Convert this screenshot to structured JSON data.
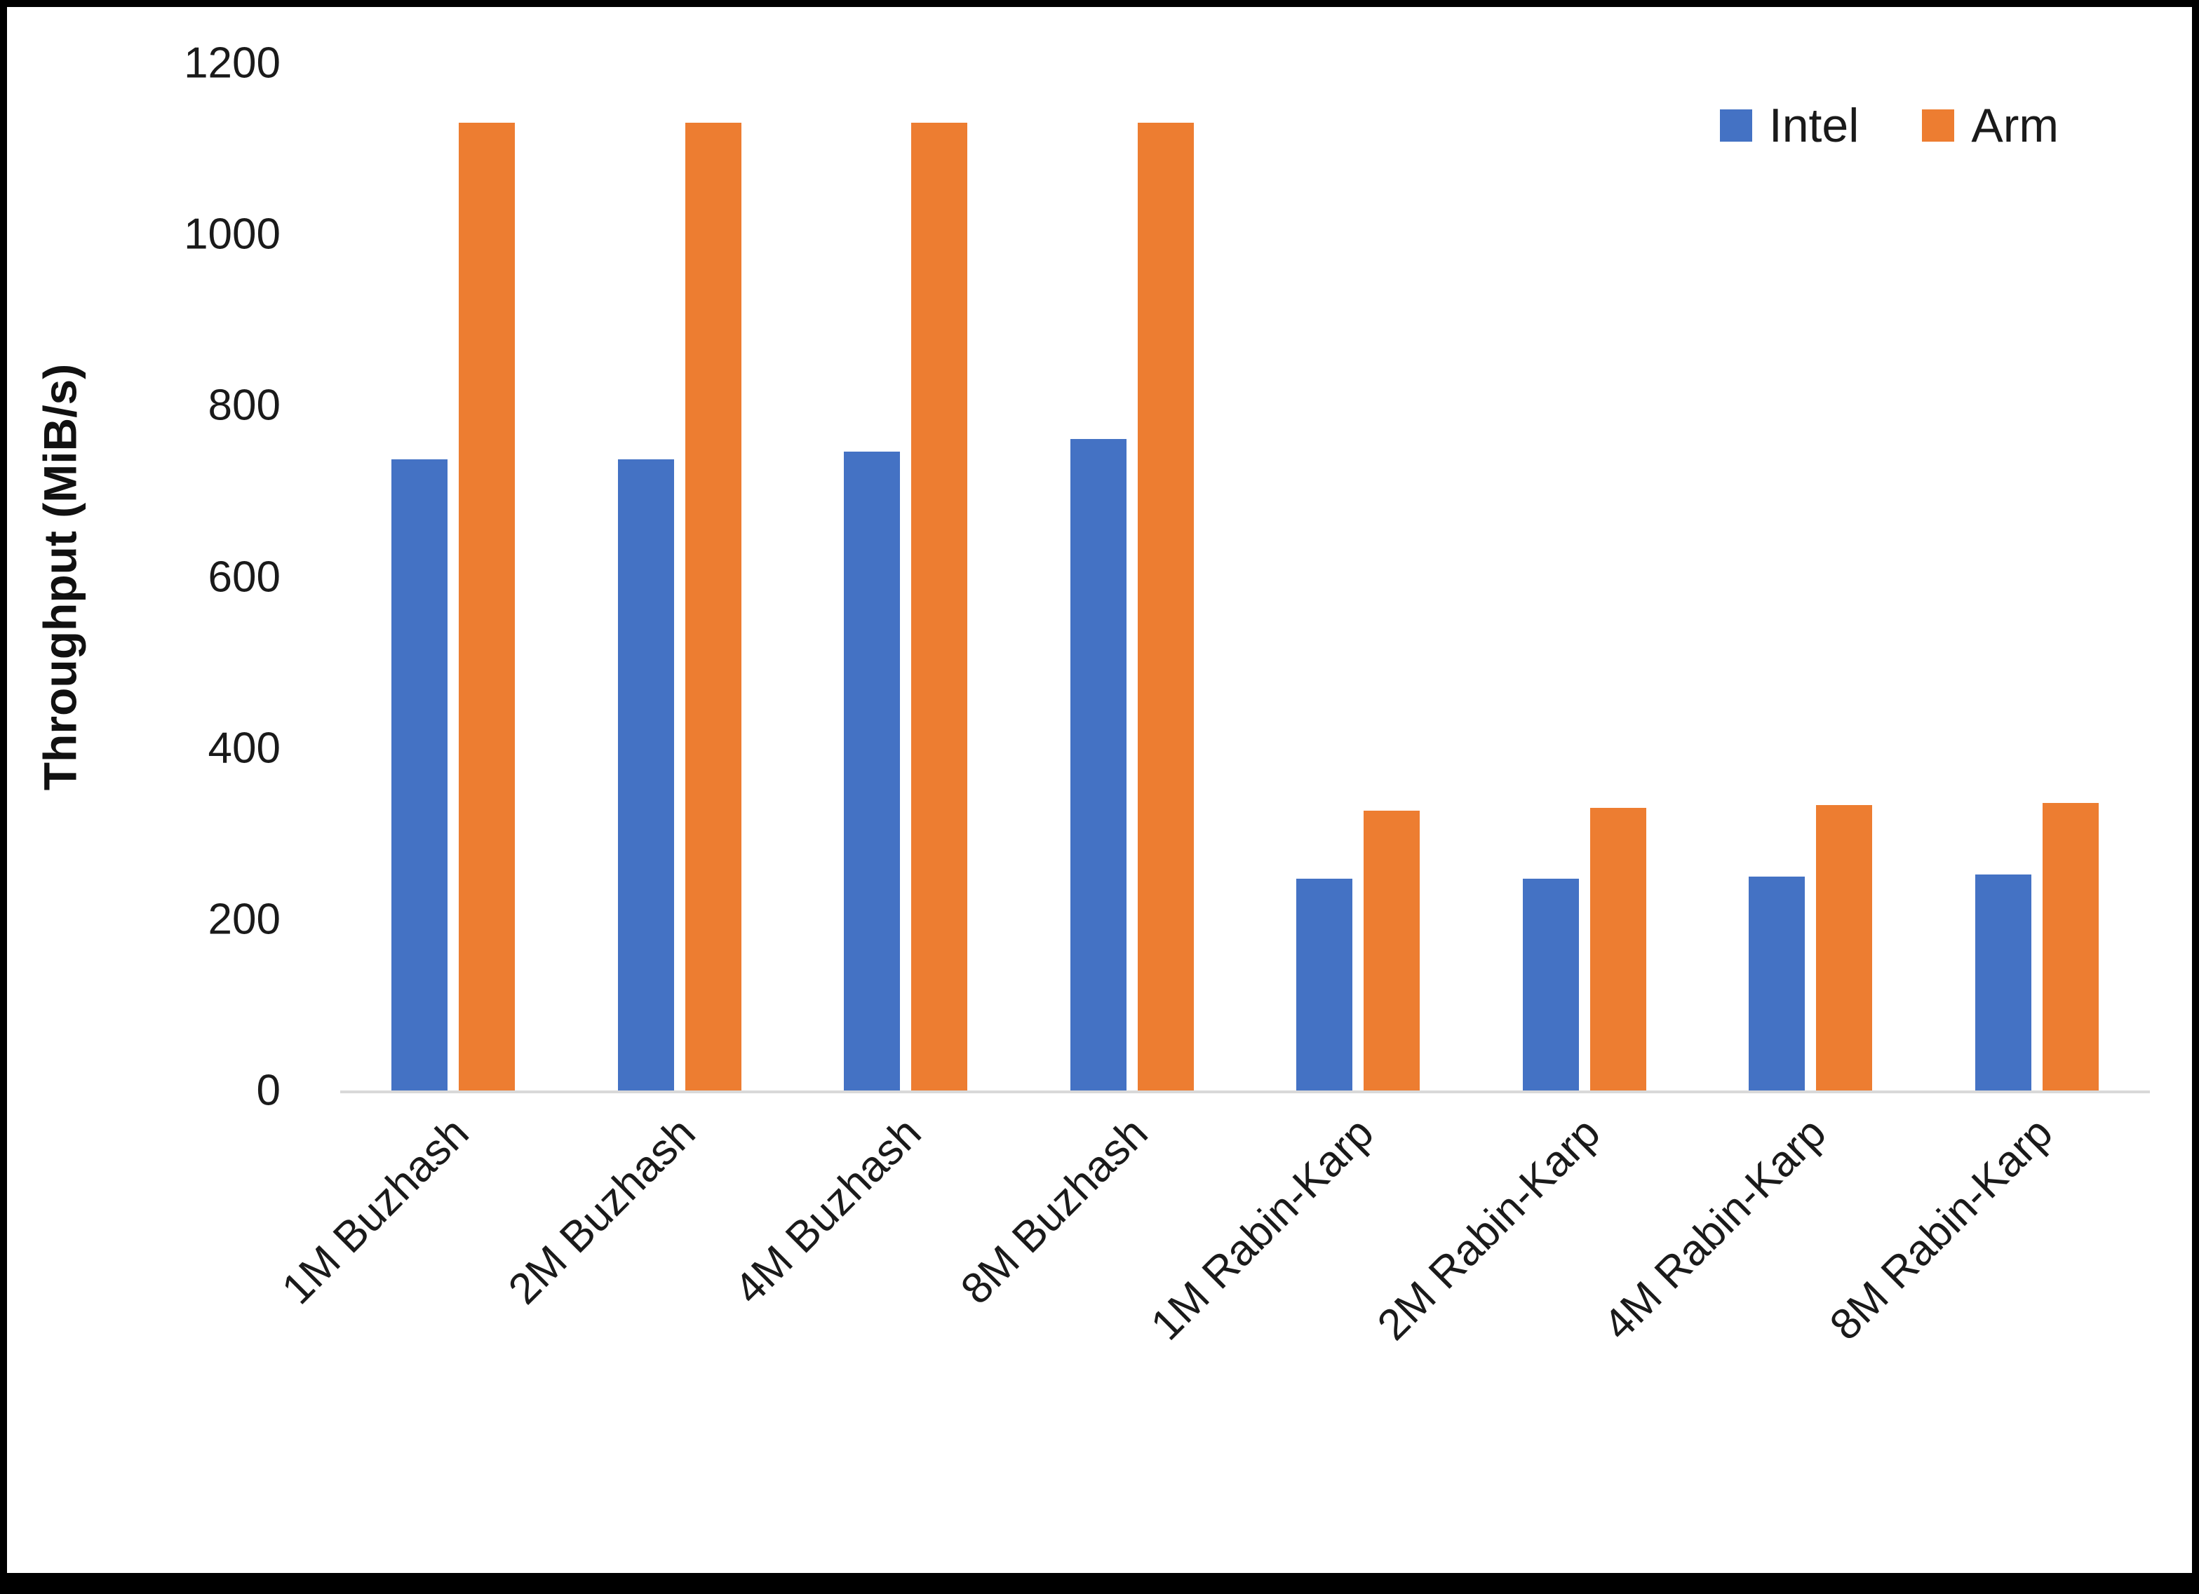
{
  "chart_data": {
    "type": "bar",
    "title": "",
    "xlabel": "",
    "ylabel": "Throughput (MiB/s)",
    "ylim": [
      0,
      1200
    ],
    "yticks": [
      0,
      200,
      400,
      600,
      800,
      1000,
      1200
    ],
    "grid": false,
    "legend_position": "top-right",
    "categories": [
      "1M Buzhash",
      "2M Buzhash",
      "4M Buzhash",
      "8M Buzhash",
      "1M Rabin-Karp",
      "2M Rabin-Karp",
      "4M Rabin-Karp",
      "8M Rabin-Karp"
    ],
    "series": [
      {
        "name": "Intel",
        "color": "#4472C4",
        "values": [
          737,
          737,
          746,
          761,
          247,
          247,
          250,
          252
        ]
      },
      {
        "name": "Arm",
        "color": "#ED7D31",
        "values": [
          1130,
          1130,
          1130,
          1130,
          327,
          330,
          333,
          336
        ]
      }
    ]
  },
  "colors": {
    "axis_line": "#d9d9d9",
    "text": "#1a1a1a",
    "frame": "#000000"
  }
}
